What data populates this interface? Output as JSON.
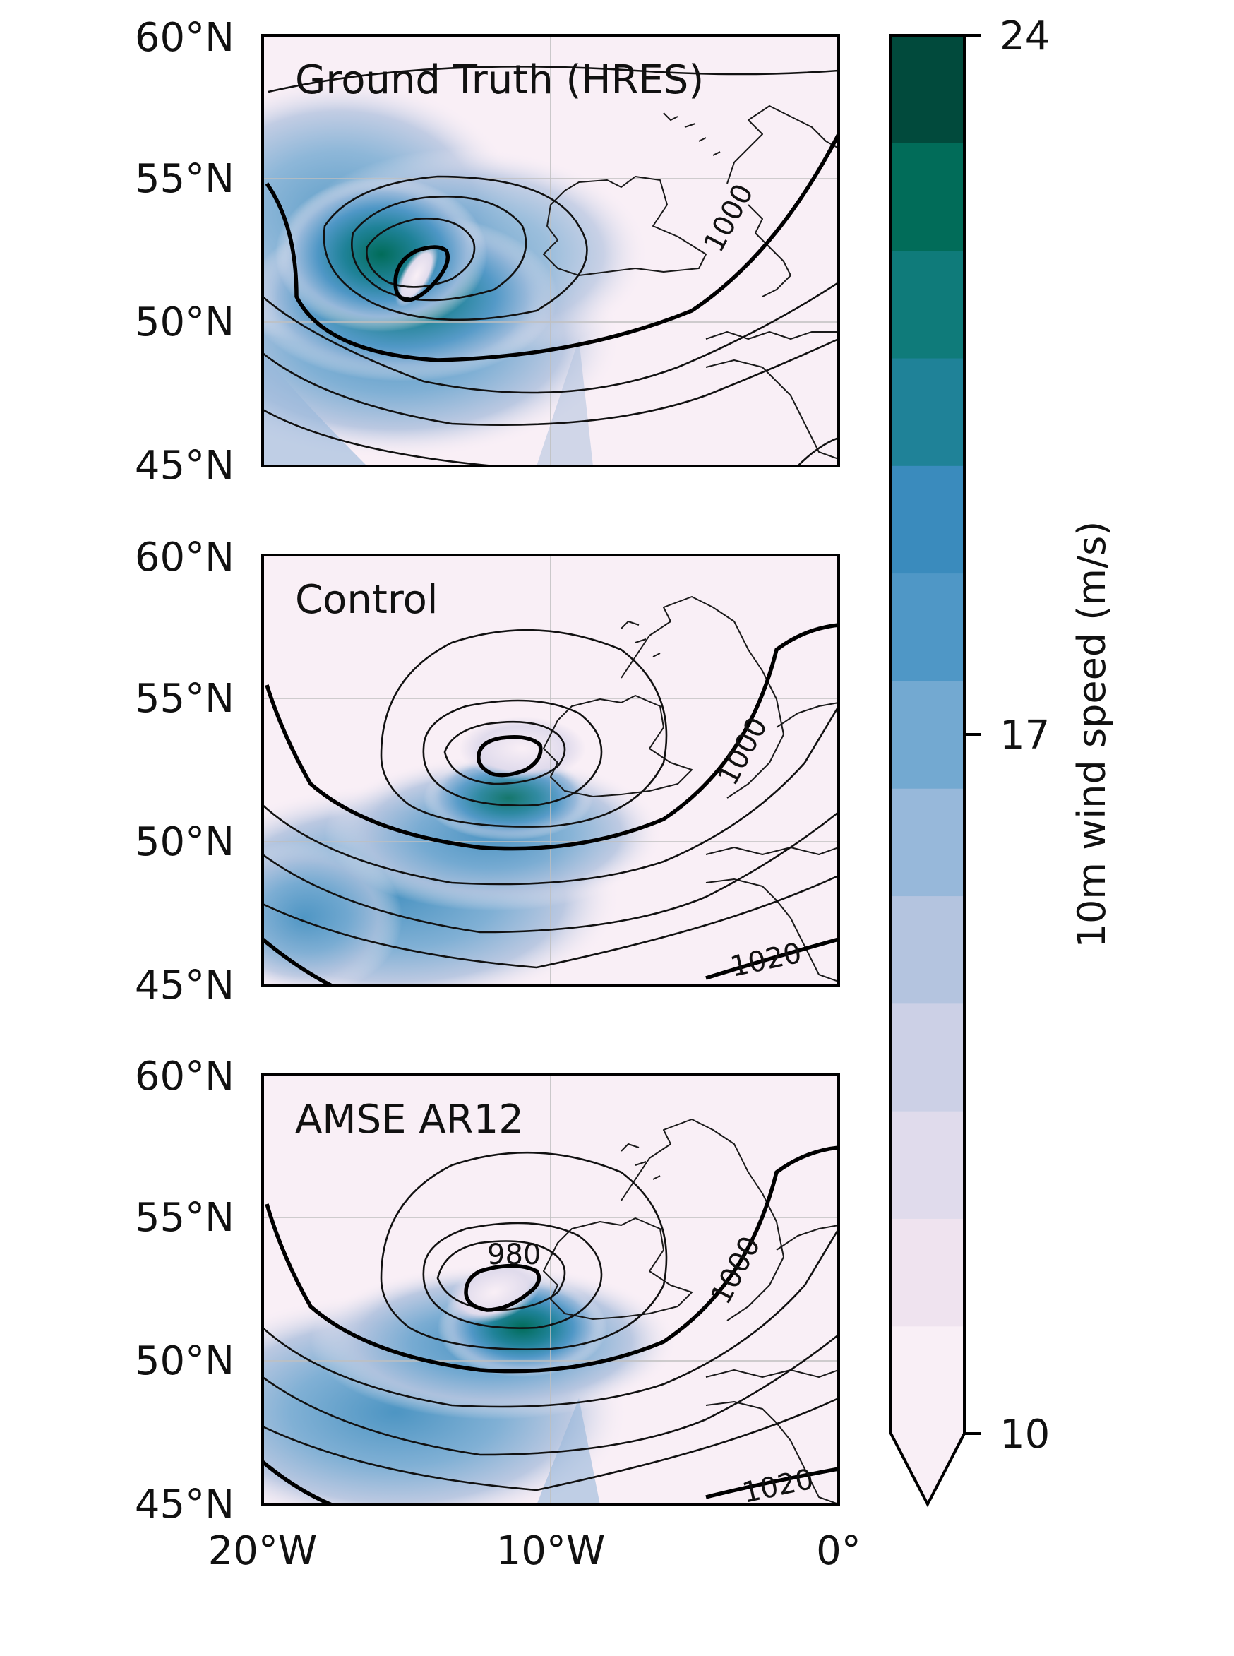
{
  "map_data": {
    "panels": [
      {
        "title": "Ground Truth (HRES)",
        "contour_labels": [
          "1000"
        ],
        "low_center_lon": -15.3,
        "low_center_lat": 51.8,
        "max_wind_ms": 24
      },
      {
        "title": "Control",
        "contour_labels": [
          "1000",
          "1020"
        ],
        "low_center_lon": -11.6,
        "low_center_lat": 52.8,
        "max_wind_ms": 22
      },
      {
        "title": "AMSE AR12",
        "contour_labels": [
          "980",
          "1000",
          "1020"
        ],
        "low_center_lon": -11.8,
        "low_center_lat": 52.2,
        "max_wind_ms": 24
      }
    ],
    "extent": {
      "lon_min": -20,
      "lon_max": 0,
      "lat_min": 45,
      "lat_max": 60
    },
    "lat_ticks": [
      "60°N",
      "55°N",
      "50°N",
      "45°N"
    ],
    "lon_ticks": [
      "20°W",
      "10°W",
      "0°"
    ],
    "gridlines": true,
    "colorbar": {
      "label": "10m wind speed (m/s)",
      "ticks": [
        "24",
        "17",
        "10"
      ],
      "min": 10,
      "max": 24,
      "levels": 13,
      "extend": "min",
      "cmap": "PuBuGn",
      "colors": [
        "#f9eff6",
        "#efe3ef",
        "#e0dbec",
        "#ccd0e6",
        "#b4c4df",
        "#97b8da",
        "#73a9d1",
        "#4f97c6",
        "#3a8bbd",
        "#1f8298",
        "#0f7b7a",
        "#016c59",
        "#014a3c"
      ]
    }
  }
}
